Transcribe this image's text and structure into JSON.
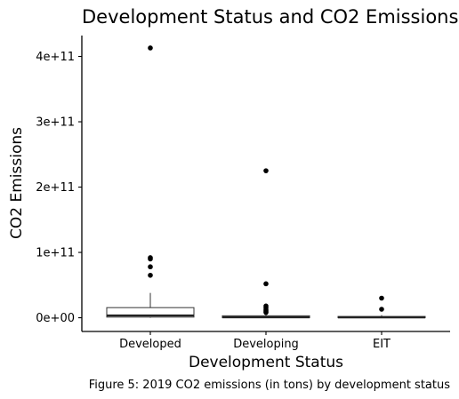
{
  "chart_data": {
    "type": "boxplot",
    "title": "Development Status and CO2 Emissions",
    "xlabel": "Development Status",
    "ylabel": "CO2 Emissions",
    "caption": "Figure 5: 2019 CO2 emissions (in tons) by development status",
    "y_ticks": [
      {
        "value": 0,
        "label": "0e+00"
      },
      {
        "value": 100000000000,
        "label": "1e+11"
      },
      {
        "value": 200000000000,
        "label": "2e+11"
      },
      {
        "value": 300000000000,
        "label": "3e+11"
      },
      {
        "value": 400000000000,
        "label": "4e+11"
      }
    ],
    "ylim": [
      -21000000000,
      432000000000
    ],
    "grid": false,
    "categories": [
      "Developed",
      "Developing",
      "EIT"
    ],
    "boxes": [
      {
        "category": "Developed",
        "whisker_low": 0,
        "q1": 1000000000,
        "median": 3500000000,
        "q3": 15500000000,
        "whisker_high": 38000000000,
        "outliers": [
          413000000000,
          92000000000,
          90000000000,
          78000000000,
          65000000000
        ]
      },
      {
        "category": "Developing",
        "whisker_low": 0,
        "q1": 0,
        "median": 800000000,
        "q3": 3000000000,
        "whisker_high": 6000000000,
        "outliers": [
          225000000000,
          52000000000,
          18000000000,
          15000000000,
          12000000000,
          10000000000,
          8000000000
        ]
      },
      {
        "category": "EIT",
        "whisker_low": 0,
        "q1": 0,
        "median": 500000000,
        "q3": 2000000000,
        "whisker_high": 4000000000,
        "outliers": [
          30000000000,
          13000000000
        ]
      }
    ]
  }
}
